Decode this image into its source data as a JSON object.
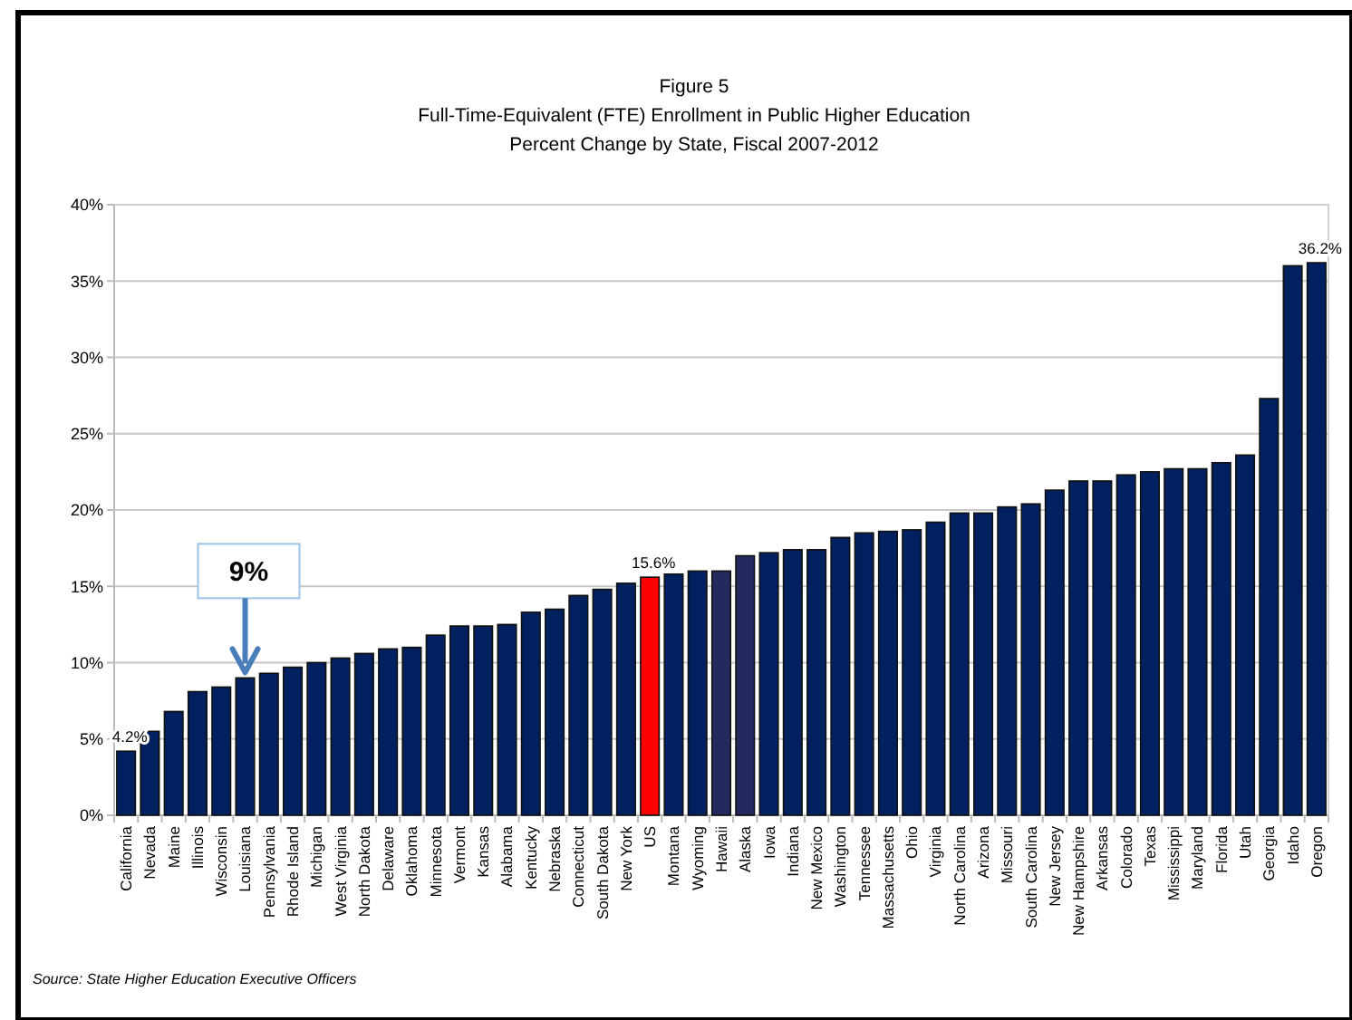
{
  "chart_data": {
    "type": "bar",
    "title": "Figure 5",
    "subtitle": "Full-Time-Equivalent (FTE) Enrollment in Public Higher Education\nPercent Change by State, Fiscal 2007-2012",
    "categories": [
      "California",
      "Nevada",
      "Maine",
      "Illinois",
      "Wisconsin",
      "Louisiana",
      "Pennsylvania",
      "Rhode Island",
      "Michigan",
      "West Virginia",
      "North Dakota",
      "Delaware",
      "Oklahoma",
      "Minnesota",
      "Vermont",
      "Kansas",
      "Alabama",
      "Kentucky",
      "Nebraska",
      "Connecticut",
      "South Dakota",
      "New York",
      "US",
      "Montana",
      "Wyoming",
      "Hawaii",
      "Alaska",
      "Iowa",
      "Indiana",
      "New Mexico",
      "Washington",
      "Tennessee",
      "Massachusetts",
      "Ohio",
      "Virginia",
      "North Carolina",
      "Arizona",
      "Missouri",
      "South Carolina",
      "New Jersey",
      "New Hampshire",
      "Arkansas",
      "Colorado",
      "Texas",
      "Mississippi",
      "Maryland",
      "Florida",
      "Utah",
      "Georgia",
      "Idaho",
      "Oregon"
    ],
    "values": [
      4.2,
      5.5,
      6.8,
      8.1,
      8.4,
      9.0,
      9.3,
      9.7,
      10.0,
      10.3,
      10.6,
      10.9,
      11.0,
      11.8,
      12.4,
      12.4,
      12.5,
      13.3,
      13.5,
      14.4,
      14.8,
      15.2,
      15.6,
      15.8,
      16.0,
      16.0,
      17.0,
      17.2,
      17.4,
      17.4,
      18.2,
      18.5,
      18.6,
      18.7,
      19.2,
      19.8,
      19.8,
      20.2,
      20.4,
      21.3,
      21.9,
      21.9,
      22.3,
      22.5,
      22.7,
      22.7,
      23.1,
      23.6,
      27.3,
      36.0,
      36.2
    ],
    "colors": [
      "#002060",
      "#002060",
      "#002060",
      "#002060",
      "#002060",
      "#002060",
      "#002060",
      "#002060",
      "#002060",
      "#002060",
      "#002060",
      "#002060",
      "#002060",
      "#002060",
      "#002060",
      "#002060",
      "#002060",
      "#002060",
      "#002060",
      "#002060",
      "#002060",
      "#002060",
      "#ff0000",
      "#002060",
      "#002060",
      "#232a5e",
      "#232a5e",
      "#002060",
      "#002060",
      "#002060",
      "#002060",
      "#002060",
      "#002060",
      "#002060",
      "#002060",
      "#002060",
      "#002060",
      "#002060",
      "#002060",
      "#002060",
      "#002060",
      "#002060",
      "#002060",
      "#002060",
      "#002060",
      "#002060",
      "#002060",
      "#002060",
      "#002060",
      "#002060",
      "#002060"
    ],
    "value_labels": [
      "4.2%",
      null,
      null,
      null,
      null,
      null,
      null,
      null,
      null,
      null,
      null,
      null,
      null,
      null,
      null,
      null,
      null,
      null,
      null,
      null,
      null,
      null,
      "15.6%",
      null,
      null,
      null,
      null,
      null,
      null,
      null,
      null,
      null,
      null,
      null,
      null,
      null,
      null,
      null,
      null,
      null,
      null,
      null,
      null,
      null,
      null,
      null,
      null,
      null,
      null,
      null,
      "36.2%"
    ],
    "ylim": [
      0,
      40
    ],
    "yticks": [
      {
        "value": 0,
        "label": "0%"
      },
      {
        "value": 5,
        "label": "5%"
      },
      {
        "value": 10,
        "label": "10%"
      },
      {
        "value": 15,
        "label": "15%"
      },
      {
        "value": 20,
        "label": "20%"
      },
      {
        "value": 25,
        "label": "25%"
      },
      {
        "value": 30,
        "label": "30%"
      },
      {
        "value": 35,
        "label": "35%"
      },
      {
        "value": 40,
        "label": "40%"
      }
    ],
    "grid": "y",
    "annotations": [
      {
        "text": "9%",
        "x": "Louisiana",
        "y": 9.0
      },
      "Source: State Higher Education Executive Officers"
    ]
  }
}
